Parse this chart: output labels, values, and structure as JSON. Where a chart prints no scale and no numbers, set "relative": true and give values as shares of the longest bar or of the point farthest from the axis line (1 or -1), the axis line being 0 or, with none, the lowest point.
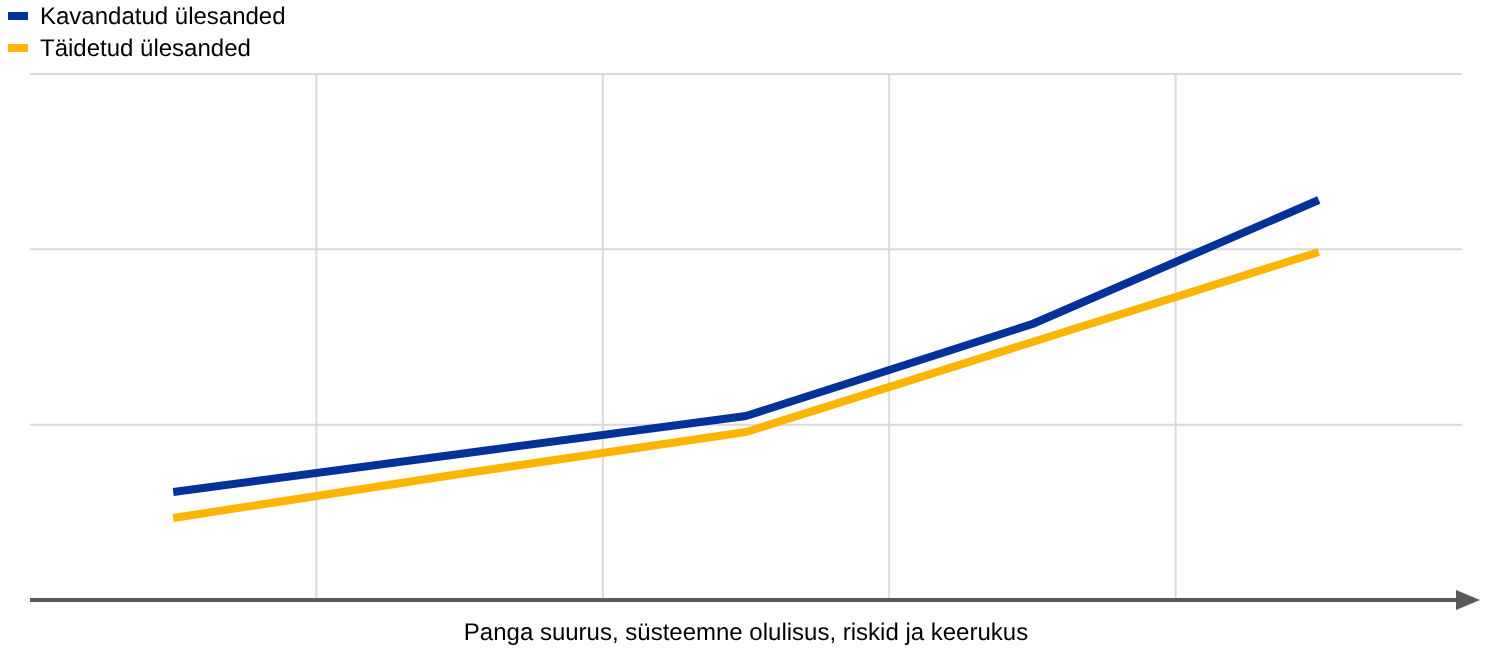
{
  "chart_data": {
    "type": "line",
    "xlabel": "Panga suurus, süsteemne olulisus, riskid ja keerukus",
    "categories": [
      null,
      null,
      null,
      null,
      null
    ],
    "relative": true,
    "grid": true,
    "legend": "top left",
    "marker": "none",
    "line_style": "solid",
    "series": [
      {
        "name": "Kavandatud ülesanded",
        "color": "#003299",
        "values": [
          0.27,
          0.365,
          0.46,
          0.69,
          1
        ]
      },
      {
        "name": "Täidetud ülesanded",
        "color": "#ffb400",
        "values": [
          0.205,
          0.315,
          0.42,
          0.645,
          0.87
        ]
      }
    ]
  }
}
